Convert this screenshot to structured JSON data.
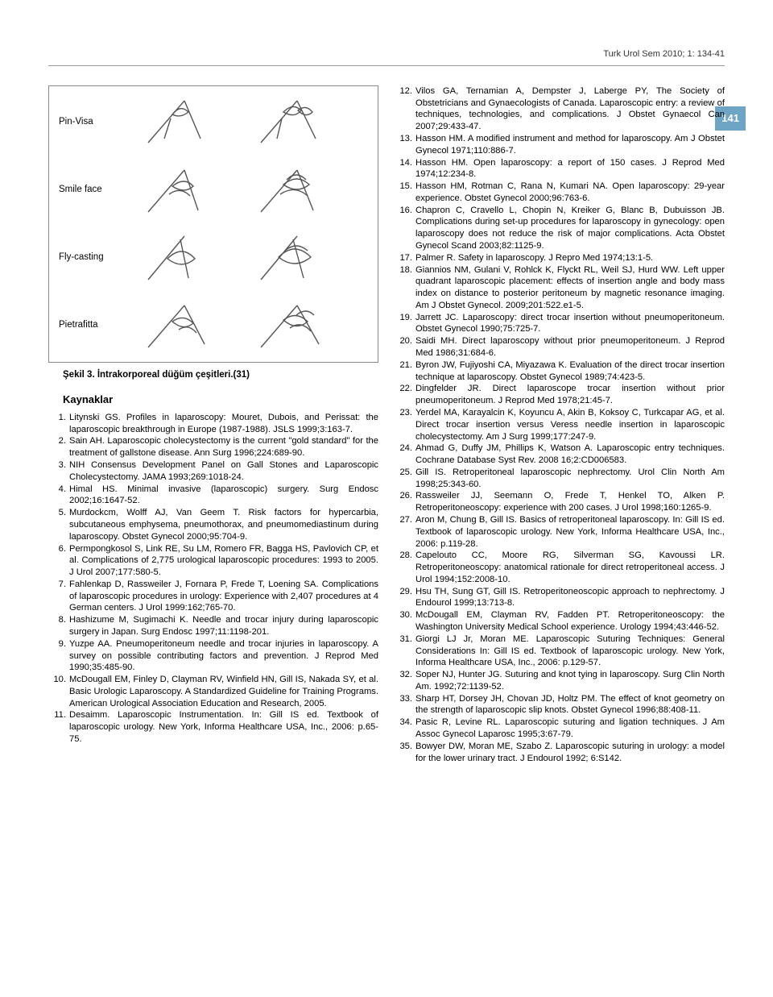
{
  "header": {
    "journal_line": "Turk Urol Sem 2010; 1: 134-41",
    "page_number": "141"
  },
  "figure": {
    "labels": [
      "Pin-Visa",
      "Smile face",
      "Fly-casting",
      "Pietrafitta"
    ],
    "caption": "Şekil 3. İntrakorporeal düğüm çeşitleri.(31)",
    "stroke_color": "#555555"
  },
  "references_title": "Kaynaklar",
  "refs_left": [
    "Litynski GS. Profiles in laparoscopy: Mouret, Dubois, and Perissat: the laparoscopic breakthrough in Europe (1987-1988). JSLS 1999;3:163-7.",
    "Sain AH. Laparoscopic cholecystectomy is the current \"gold standard\" for the treatment of gallstone disease. Ann Surg 1996;224:689-90.",
    "NIH Consensus Development Panel on Gall Stones and Laparoscopic Cholecystectomy. JAMA 1993;269:1018-24.",
    "Himal HS. Minimal invasive (laparoscopic) surgery. Surg Endosc 2002;16:1647-52.",
    "Murdockcm, Wolff AJ, Van Geem T. Risk factors for hypercarbia, subcutaneous emphysema, pneumothorax, and pneumomediastinum during laparoscopy. Obstet Gynecol 2000;95:704-9.",
    "Permpongkosol S, Link RE, Su LM, Romero FR, Bagga HS, Pavlovich CP, et al. Complications of 2,775 urological laparoscopic procedures: 1993 to 2005. J Urol 2007;177:580-5.",
    "Fahlenkap D, Rassweiler J, Fornara P, Frede T, Loening SA. Complications of laparoscopic procedures in urology: Experience with 2,407 procedures at 4 German centers. J Urol 1999:162;765-70.",
    "Hashizume M, Sugimachi K. Needle and trocar injury during laparoscopic surgery in Japan. Surg Endosc 1997;11:1198-201.",
    "Yuzpe AA. Pneumoperitoneum needle and trocar injuries in laparoscopy. A survey on possible contributing factors and prevention. J Reprod Med 1990;35:485-90.",
    "McDougall EM, Finley D, Clayman RV, Winfield HN, Gill IS, Nakada SY, et al. Basic Urologic Laparoscopy. A Standardized Guideline for Training Programs. American Urological Association Education and Research, 2005.",
    "Desaimm. Laparoscopic Instrumentation. In: Gill IS ed. Textbook of laparoscopic urology. New York, Informa Healthcare USA, Inc., 2006: p.65-75."
  ],
  "refs_right": [
    "Vilos GA, Ternamian A, Dempster J, Laberge PY, The Society of Obstetricians and Gynaecologists of Canada. Laparoscopic entry: a review of techniques, technologies, and complications. J Obstet Gynaecol Can 2007;29:433-47.",
    "Hasson HM. A modified instrument and method for laparoscopy. Am J Obstet Gynecol 1971;110:886-7.",
    "Hasson HM. Open laparoscopy: a report of 150 cases. J Reprod Med 1974;12:234-8.",
    "Hasson HM, Rotman C, Rana N, Kumari NA. Open laparoscopy: 29-year experience. Obstet Gynecol 2000;96:763-6.",
    "Chapron C, Cravello L, Chopin N, Kreiker G, Blanc B, Dubuisson JB. Complications during set-up procedures for laparoscopy in gynecology: open laparoscopy does not reduce the risk of major complications. Acta Obstet Gynecol Scand 2003;82:1125-9.",
    "Palmer R. Safety in laparoscopy. J Repro Med 1974;13:1-5.",
    "Giannios NM, Gulani V, Rohlck K, Flyckt RL, Weil SJ, Hurd WW. Left upper quadrant laparoscopic placement: effects of insertion angle and body mass index on distance to posterior peritoneum by magnetic resonance imaging. Am J Obstet Gynecol. 2009;201:522.e1-5.",
    "Jarrett JC. Laparoscopy: direct trocar insertion without pneumoperitoneum. Obstet Gynecol 1990;75:725-7.",
    "Saidi MH. Direct laparoscopy without prior pneumoperitoneum. J Reprod Med 1986;31:684-6.",
    "Byron JW, Fujiyoshi CA, Miyazawa K. Evaluation of the direct trocar insertion technique at laparoscopy. Obstet Gynecol 1989;74:423-5.",
    "Dingfelder JR. Direct laparoscope trocar insertion without prior pneumoperitoneum. J Reprod Med 1978;21:45-7.",
    "Yerdel MA, Karayalcin K, Koyuncu A, Akin B, Koksoy C, Turkcapar AG, et al. Direct trocar insertion versus Veress needle insertion in laparoscopic cholecystectomy. Am J Surg 1999;177:247-9.",
    "Ahmad G, Duffy JM, Phillips K, Watson A. Laparoscopic entry techniques. Cochrane Database Syst Rev. 2008 16;2:CD006583.",
    "Gill IS. Retroperitoneal laparoscopic nephrectomy. Urol Clin North Am 1998;25:343-60.",
    "Rassweiler JJ, Seemann O, Frede T, Henkel TO, Alken P. Retroperitoneoscopy: experience with 200 cases. J Urol 1998;160:1265-9.",
    "Aron M, Chung B, Gill IS. Basics of retroperitoneal laparoscopy. In: Gill IS ed. Textbook of laparoscopic urology. New York, Informa Healthcare USA, Inc., 2006: p.119-28.",
    "Capelouto CC, Moore RG, Silverman SG, Kavoussi LR. Retroperitoneoscopy: anatomical rationale for direct retroperitoneal access. J Urol 1994;152:2008-10.",
    "Hsu TH, Sung GT, Gill IS. Retroperitoneoscopic approach to nephrectomy. J Endourol 1999;13:713-8.",
    "McDougall EM, Clayman RV, Fadden PT. Retroperitoneoscopy: the Washington University Medical School experience. Urology 1994;43:446-52.",
    "Giorgi LJ Jr, Moran ME. Laparoscopic Suturing Techniques: General Considerations In: Gill IS ed. Textbook of laparoscopic urology. New York, Informa Healthcare USA, Inc., 2006: p.129-57.",
    "Soper NJ, Hunter JG. Suturing and knot tying in laparoscopy. Surg Clin North Am. 1992;72:1139-52.",
    "Sharp HT, Dorsey JH, Chovan JD, Holtz PM. The effect of knot geometry on the strength of laparoscopic slip knots. Obstet Gynecol 1996;88:408-11.",
    "Pasic R, Levine RL. Laparoscopic suturing and ligation techniques. J Am Assoc Gynecol Laparosc 1995;3:67-79.",
    "Bowyer DW, Moran ME, Szabo Z. Laparoscopic suturing in urology: a model for the lower urinary tract. J Endourol 1992; 6:S142."
  ]
}
